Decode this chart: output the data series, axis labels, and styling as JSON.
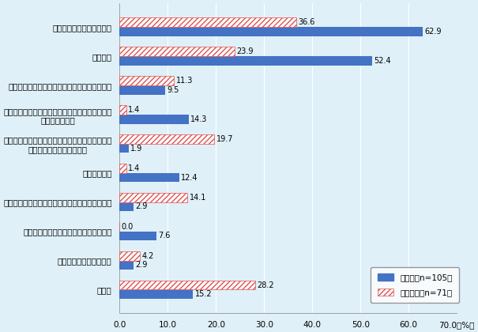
{
  "categories": [
    "稼働率の抑制あるいは向上",
    "在庫調整",
    "自動化・省人化のための設備・システムの導入",
    "他国への生産移管や日本国内回帰などのサプライ\nチェーンの再編",
    "供給方法の変更（オンライン販売の開始、デリバ\nリーサービスの利用など）",
    "調達先の変更",
    "生産管理／運営管理におけるデジタル技術の導入",
    "設備・原材料の変更（代替品の利用等）",
    "設備投資による機能強化",
    "その他"
  ],
  "manufacturing": [
    62.9,
    52.4,
    9.5,
    14.3,
    1.9,
    12.4,
    2.9,
    7.6,
    2.9,
    15.2
  ],
  "non_manufacturing": [
    36.6,
    23.9,
    11.3,
    1.4,
    19.7,
    1.4,
    14.1,
    0.0,
    4.2,
    28.2
  ],
  "manufacturing_color": "#4472C4",
  "non_manufacturing_hatch_color": "#E05050",
  "background_color": "#DFF0F8",
  "xlim": [
    0,
    70
  ],
  "xticks": [
    0.0,
    10.0,
    20.0,
    30.0,
    40.0,
    50.0,
    60.0,
    70.0
  ],
  "xtick_labels": [
    "0.0",
    "10.0",
    "20.0",
    "30.0",
    "40.0",
    "50.0",
    "60.0",
    "70.0（%）"
  ],
  "legend_manufacturing": "製造業（n=105）",
  "legend_non_manufacturing": "非製造業（n=71）",
  "bar_height": 0.32,
  "label_fontsize": 7.5,
  "tick_fontsize": 7.5,
  "value_fontsize": 7.0
}
